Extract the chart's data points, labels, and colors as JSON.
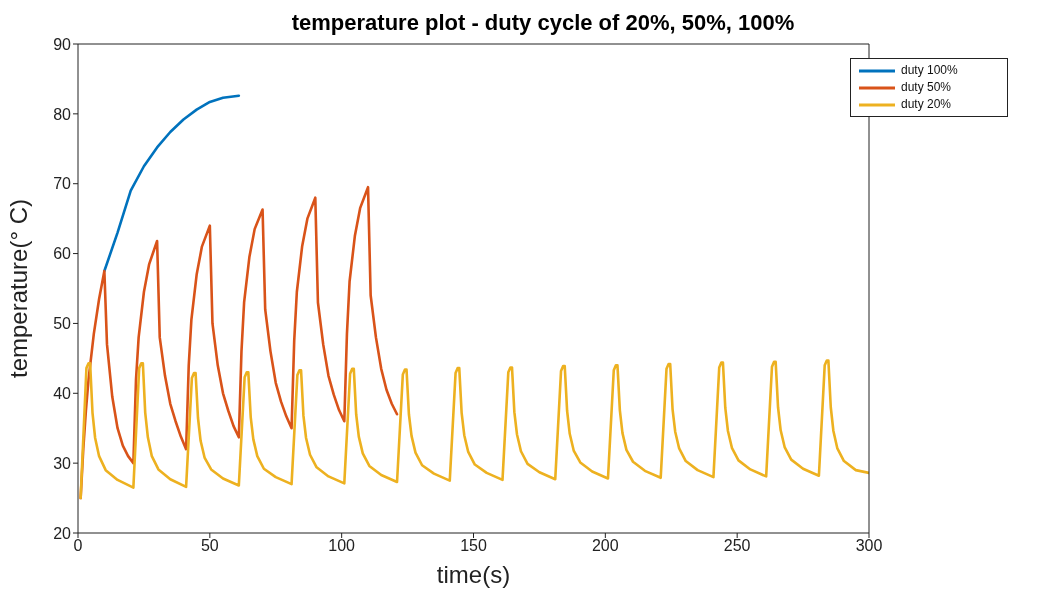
{
  "chart_data": {
    "type": "line",
    "title": "temperature plot - duty cycle of 20%, 50%, 100%",
    "xlabel": "time(s)",
    "ylabel": "temperature(° C)",
    "xlim": [
      0,
      300
    ],
    "xticks": [
      0,
      50,
      100,
      150,
      200,
      250,
      300
    ],
    "ylim": [
      20,
      90
    ],
    "yticks": [
      20,
      30,
      40,
      50,
      60,
      70,
      80,
      90
    ],
    "grid": false,
    "legend": "top right",
    "marker": "none",
    "line_style": "solid",
    "series": [
      {
        "name": "duty 100%",
        "color": "#0072bd",
        "x": [
          10,
          15,
          20,
          25,
          30,
          35,
          40,
          45,
          50,
          55,
          61
        ],
        "values": [
          57.5,
          63,
          69,
          72.5,
          75.2,
          77.4,
          79.2,
          80.6,
          81.7,
          82.3,
          82.6
        ]
      },
      {
        "name": "duty 50%",
        "color": "#d95319",
        "x": [
          1,
          2,
          3,
          4,
          6,
          8,
          10,
          11,
          13,
          15,
          17,
          19,
          21,
          22,
          23,
          25,
          27,
          30,
          31,
          33,
          35,
          37,
          39,
          41,
          42,
          43,
          45,
          47,
          50,
          51,
          53,
          55,
          57,
          59,
          61,
          62,
          63,
          65,
          67,
          70,
          71,
          73,
          75,
          77,
          79,
          81,
          82,
          83,
          85,
          87,
          90,
          91,
          93,
          95,
          97,
          99,
          101,
          102,
          103,
          105,
          107,
          110,
          111,
          113,
          115,
          117,
          119,
          121
        ],
        "values": [
          25,
          32,
          37.5,
          42,
          48.5,
          53.5,
          57.5,
          47,
          39.5,
          35,
          32.5,
          31,
          30,
          42,
          48,
          54.5,
          58.5,
          61.8,
          48,
          42.5,
          38.5,
          36,
          33.8,
          32,
          44,
          50.5,
          57,
          61,
          64,
          50,
          44,
          40,
          37.5,
          35.3,
          33.7,
          46,
          53,
          59.5,
          63.5,
          66.3,
          52,
          46,
          41.5,
          38.8,
          36.7,
          35,
          47.5,
          54.5,
          61,
          65,
          68,
          53,
          47,
          42.5,
          39.8,
          37.6,
          36,
          48.5,
          56,
          62.5,
          66.5,
          69.5,
          54,
          48,
          43.5,
          40.5,
          38.5,
          37
        ]
      },
      {
        "name": "duty 20%",
        "color": "#edb120",
        "x": [
          1,
          3.2,
          4,
          4.6,
          5.5,
          6.5,
          8,
          10.5,
          15,
          21,
          23.2,
          24,
          24.6,
          25.5,
          26.5,
          28,
          30.5,
          35,
          41,
          43.2,
          44,
          44.6,
          45.5,
          46.5,
          48,
          50.5,
          55,
          61,
          63.2,
          64,
          64.6,
          65.5,
          66.5,
          68,
          70.5,
          75,
          81,
          83.2,
          84,
          84.6,
          85.5,
          86.5,
          88,
          90.5,
          95,
          101,
          103.2,
          104,
          104.6,
          105.5,
          106.5,
          108,
          110.5,
          115,
          121,
          123.2,
          124,
          124.6,
          125.5,
          126.5,
          128,
          130.5,
          135,
          141,
          143.2,
          144,
          144.6,
          145.5,
          146.5,
          148,
          150.5,
          155,
          161,
          163.2,
          164,
          164.6,
          165.5,
          166.5,
          168,
          170.5,
          175,
          181,
          183.2,
          184,
          184.6,
          185.5,
          186.5,
          188,
          190.5,
          195,
          201,
          203.2,
          204,
          204.6,
          205.5,
          206.5,
          208,
          210.5,
          215,
          221,
          223.2,
          224,
          224.6,
          225.5,
          226.5,
          228,
          230.5,
          235,
          241,
          243.2,
          244,
          244.6,
          245.5,
          246.5,
          248,
          250.5,
          255,
          261,
          263.2,
          264,
          264.6,
          265.5,
          266.5,
          268,
          270.5,
          275,
          281,
          283.2,
          284,
          284.6,
          285.5,
          286.5,
          288,
          290.5,
          295,
          300
        ],
        "values": [
          25,
          43.6,
          44.3,
          44.3,
          37.2,
          33.6,
          31,
          29,
          27.6,
          26.5,
          43.6,
          44.3,
          44.3,
          37.2,
          33.7,
          31,
          29.1,
          27.7,
          26.6,
          42.2,
          42.9,
          42.9,
          36.5,
          33.2,
          30.8,
          29.1,
          27.8,
          26.8,
          42.3,
          43,
          43,
          36.6,
          33.4,
          31,
          29.2,
          28,
          27,
          42.6,
          43.3,
          43.3,
          36.8,
          33.6,
          31.2,
          29.4,
          28.1,
          27.1,
          42.8,
          43.5,
          43.5,
          37,
          33.8,
          31.4,
          29.6,
          28.3,
          27.3,
          42.7,
          43.4,
          43.4,
          37,
          33.9,
          31.5,
          29.7,
          28.5,
          27.5,
          42.9,
          43.6,
          43.6,
          37.2,
          34,
          31.6,
          29.8,
          28.6,
          27.6,
          43,
          43.7,
          43.7,
          37.3,
          34.1,
          31.7,
          29.9,
          28.7,
          27.7,
          43.2,
          43.9,
          43.9,
          37.5,
          34.2,
          31.8,
          30.1,
          28.8,
          27.8,
          43.3,
          44,
          44,
          37.6,
          34.3,
          31.9,
          30.2,
          28.9,
          27.9,
          43.5,
          44.2,
          44.2,
          37.7,
          34.5,
          32.1,
          30.3,
          29,
          28,
          43.7,
          44.4,
          44.4,
          37.9,
          34.6,
          32.2,
          30.4,
          29.1,
          28.1,
          43.8,
          44.5,
          44.5,
          38,
          34.7,
          32.3,
          30.5,
          29.2,
          28.2,
          44,
          44.7,
          44.7,
          38,
          34.6,
          32.1,
          30.3,
          29,
          28.6
        ]
      }
    ]
  }
}
